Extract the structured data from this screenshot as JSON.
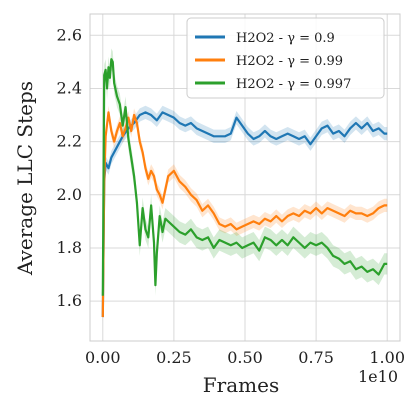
{
  "chart_data": {
    "type": "line",
    "xlabel": "Frames",
    "ylabel": "Average LLC Steps",
    "x_offset_label": "1e10",
    "xlim": [
      -0.045,
      1.045
    ],
    "ylim": [
      1.45,
      2.68
    ],
    "xticks": [
      0.0,
      0.25,
      0.5,
      0.75,
      1.0
    ],
    "xtick_labels": [
      "0.00",
      "0.25",
      "0.50",
      "0.75",
      "1.00"
    ],
    "yticks": [
      1.6,
      1.8,
      2.0,
      2.2,
      2.4,
      2.6
    ],
    "ytick_labels": [
      "1.6",
      "1.8",
      "2.0",
      "2.2",
      "2.4",
      "2.6"
    ],
    "grid": true,
    "legend_position": "top-right",
    "series": [
      {
        "name": "H2O2 - γ = 0.9",
        "color": "#1f77b4",
        "band": 0.025,
        "points": [
          [
            0.0,
            1.54
          ],
          [
            0.005,
            2.05
          ],
          [
            0.01,
            2.12
          ],
          [
            0.02,
            2.1
          ],
          [
            0.03,
            2.14
          ],
          [
            0.05,
            2.18
          ],
          [
            0.07,
            2.22
          ],
          [
            0.09,
            2.25
          ],
          [
            0.11,
            2.27
          ],
          [
            0.13,
            2.3
          ],
          [
            0.15,
            2.31
          ],
          [
            0.17,
            2.3
          ],
          [
            0.19,
            2.28
          ],
          [
            0.21,
            2.31
          ],
          [
            0.23,
            2.3
          ],
          [
            0.25,
            2.29
          ],
          [
            0.27,
            2.27
          ],
          [
            0.29,
            2.26
          ],
          [
            0.31,
            2.27
          ],
          [
            0.33,
            2.25
          ],
          [
            0.35,
            2.24
          ],
          [
            0.37,
            2.23
          ],
          [
            0.39,
            2.22
          ],
          [
            0.41,
            2.22
          ],
          [
            0.43,
            2.22
          ],
          [
            0.45,
            2.23
          ],
          [
            0.47,
            2.29
          ],
          [
            0.49,
            2.26
          ],
          [
            0.51,
            2.23
          ],
          [
            0.53,
            2.21
          ],
          [
            0.55,
            2.22
          ],
          [
            0.57,
            2.24
          ],
          [
            0.59,
            2.22
          ],
          [
            0.61,
            2.21
          ],
          [
            0.63,
            2.22
          ],
          [
            0.65,
            2.23
          ],
          [
            0.67,
            2.22
          ],
          [
            0.69,
            2.21
          ],
          [
            0.71,
            2.22
          ],
          [
            0.73,
            2.19
          ],
          [
            0.75,
            2.22
          ],
          [
            0.77,
            2.25
          ],
          [
            0.79,
            2.26
          ],
          [
            0.81,
            2.23
          ],
          [
            0.83,
            2.24
          ],
          [
            0.85,
            2.22
          ],
          [
            0.87,
            2.25
          ],
          [
            0.89,
            2.27
          ],
          [
            0.91,
            2.25
          ],
          [
            0.93,
            2.27
          ],
          [
            0.95,
            2.24
          ],
          [
            0.97,
            2.25
          ],
          [
            0.99,
            2.23
          ],
          [
            1.0,
            2.23
          ]
        ]
      },
      {
        "name": "H2O2 - γ = 0.99",
        "color": "#ff7f0e",
        "band": 0.025,
        "points": [
          [
            0.0,
            1.54
          ],
          [
            0.005,
            2.05
          ],
          [
            0.01,
            2.22
          ],
          [
            0.02,
            2.31
          ],
          [
            0.03,
            2.24
          ],
          [
            0.04,
            2.2
          ],
          [
            0.05,
            2.24
          ],
          [
            0.06,
            2.27
          ],
          [
            0.07,
            2.22
          ],
          [
            0.08,
            2.25
          ],
          [
            0.09,
            2.29
          ],
          [
            0.1,
            2.24
          ],
          [
            0.11,
            2.3
          ],
          [
            0.12,
            2.27
          ],
          [
            0.13,
            2.2
          ],
          [
            0.14,
            2.16
          ],
          [
            0.15,
            2.1
          ],
          [
            0.16,
            2.06
          ],
          [
            0.17,
            2.09
          ],
          [
            0.18,
            2.07
          ],
          [
            0.19,
            2.02
          ],
          [
            0.2,
            2.0
          ],
          [
            0.21,
            1.97
          ],
          [
            0.22,
            2.02
          ],
          [
            0.23,
            2.07
          ],
          [
            0.25,
            2.09
          ],
          [
            0.27,
            2.05
          ],
          [
            0.29,
            2.03
          ],
          [
            0.31,
            2.0
          ],
          [
            0.33,
            1.98
          ],
          [
            0.35,
            1.94
          ],
          [
            0.37,
            1.96
          ],
          [
            0.39,
            1.93
          ],
          [
            0.41,
            1.89
          ],
          [
            0.43,
            1.88
          ],
          [
            0.45,
            1.89
          ],
          [
            0.47,
            1.87
          ],
          [
            0.49,
            1.88
          ],
          [
            0.51,
            1.89
          ],
          [
            0.53,
            1.9
          ],
          [
            0.55,
            1.89
          ],
          [
            0.57,
            1.91
          ],
          [
            0.59,
            1.9
          ],
          [
            0.61,
            1.92
          ],
          [
            0.63,
            1.9
          ],
          [
            0.65,
            1.92
          ],
          [
            0.67,
            1.93
          ],
          [
            0.69,
            1.92
          ],
          [
            0.71,
            1.94
          ],
          [
            0.73,
            1.93
          ],
          [
            0.75,
            1.95
          ],
          [
            0.77,
            1.93
          ],
          [
            0.79,
            1.95
          ],
          [
            0.81,
            1.94
          ],
          [
            0.83,
            1.93
          ],
          [
            0.85,
            1.92
          ],
          [
            0.87,
            1.94
          ],
          [
            0.89,
            1.93
          ],
          [
            0.91,
            1.93
          ],
          [
            0.93,
            1.92
          ],
          [
            0.95,
            1.93
          ],
          [
            0.97,
            1.95
          ],
          [
            0.99,
            1.96
          ],
          [
            1.0,
            1.96
          ]
        ]
      },
      {
        "name": "H2O2 - γ = 0.997",
        "color": "#2ca02c",
        "band": 0.04,
        "points": [
          [
            0.0,
            1.62
          ],
          [
            0.005,
            2.45
          ],
          [
            0.01,
            2.47
          ],
          [
            0.015,
            2.4
          ],
          [
            0.02,
            2.48
          ],
          [
            0.025,
            2.44
          ],
          [
            0.03,
            2.51
          ],
          [
            0.035,
            2.5
          ],
          [
            0.04,
            2.42
          ],
          [
            0.05,
            2.37
          ],
          [
            0.06,
            2.34
          ],
          [
            0.07,
            2.26
          ],
          [
            0.08,
            2.33
          ],
          [
            0.09,
            2.21
          ],
          [
            0.1,
            2.14
          ],
          [
            0.11,
            2.07
          ],
          [
            0.12,
            1.97
          ],
          [
            0.13,
            1.81
          ],
          [
            0.14,
            1.95
          ],
          [
            0.15,
            1.87
          ],
          [
            0.16,
            1.84
          ],
          [
            0.17,
            1.96
          ],
          [
            0.18,
            1.82
          ],
          [
            0.185,
            1.66
          ],
          [
            0.19,
            1.78
          ],
          [
            0.2,
            1.92
          ],
          [
            0.21,
            1.86
          ],
          [
            0.22,
            1.91
          ],
          [
            0.23,
            1.9
          ],
          [
            0.25,
            1.88
          ],
          [
            0.27,
            1.86
          ],
          [
            0.29,
            1.85
          ],
          [
            0.31,
            1.87
          ],
          [
            0.33,
            1.84
          ],
          [
            0.35,
            1.83
          ],
          [
            0.37,
            1.84
          ],
          [
            0.39,
            1.8
          ],
          [
            0.41,
            1.83
          ],
          [
            0.43,
            1.82
          ],
          [
            0.45,
            1.81
          ],
          [
            0.47,
            1.82
          ],
          [
            0.49,
            1.8
          ],
          [
            0.51,
            1.81
          ],
          [
            0.53,
            1.82
          ],
          [
            0.55,
            1.79
          ],
          [
            0.57,
            1.84
          ],
          [
            0.59,
            1.83
          ],
          [
            0.61,
            1.81
          ],
          [
            0.63,
            1.83
          ],
          [
            0.65,
            1.81
          ],
          [
            0.67,
            1.84
          ],
          [
            0.69,
            1.82
          ],
          [
            0.71,
            1.8
          ],
          [
            0.73,
            1.82
          ],
          [
            0.75,
            1.81
          ],
          [
            0.77,
            1.82
          ],
          [
            0.79,
            1.8
          ],
          [
            0.81,
            1.77
          ],
          [
            0.83,
            1.76
          ],
          [
            0.85,
            1.74
          ],
          [
            0.87,
            1.75
          ],
          [
            0.89,
            1.72
          ],
          [
            0.91,
            1.73
          ],
          [
            0.93,
            1.71
          ],
          [
            0.95,
            1.72
          ],
          [
            0.97,
            1.7
          ],
          [
            0.99,
            1.74
          ],
          [
            1.0,
            1.74
          ]
        ]
      }
    ]
  }
}
